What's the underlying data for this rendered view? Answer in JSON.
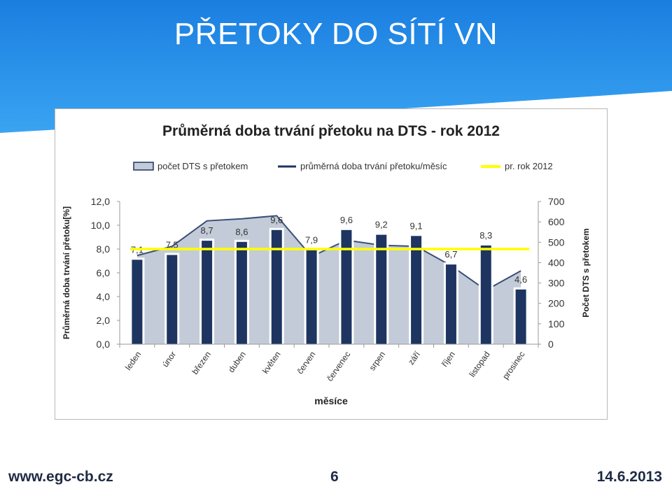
{
  "slide": {
    "title": "PŘETOKY DO SÍTÍ VN",
    "footer_url": "www.egc-cb.cz",
    "page_number": "6",
    "date": "14.6.2013"
  },
  "colors": {
    "header_blue": "#1e88e5",
    "bar_color": "#1d3560",
    "area_fill": "#c3cbd8",
    "line_color": "#1d3560",
    "avg_line": "#ffff00"
  },
  "chart_data": {
    "type": "bar",
    "title": "Průměrná doba trvání přetoku na DTS - rok 2012",
    "xlabel": "měsíce",
    "ylabel": "Průměrná doba trvání přetoku[%]",
    "y2label": "Počet DTS s přetokem",
    "categories": [
      "leden",
      "únor",
      "březen",
      "duben",
      "květen",
      "červen",
      "červenec",
      "srpen",
      "září",
      "říjen",
      "listopad",
      "prosinec"
    ],
    "series": [
      {
        "name": "počet DTS s přetokem",
        "kind": "area",
        "axis": "right",
        "values": [
          435,
          480,
          605,
          615,
          630,
          430,
          510,
          485,
          480,
          385,
          265,
          360
        ]
      },
      {
        "name": "průměrná doba trvání přetoku/měsíc",
        "kind": "bar",
        "axis": "left",
        "values": [
          7.1,
          7.5,
          8.7,
          8.6,
          9.6,
          7.9,
          9.6,
          9.2,
          9.1,
          6.7,
          8.3,
          4.6
        ],
        "labels": [
          "7,1",
          "7,5",
          "8,7",
          "8,6",
          "9,6",
          "7,9",
          "9,6",
          "9,2",
          "9,1",
          "6,7",
          "8,3",
          "4,6"
        ]
      },
      {
        "name": "pr. rok 2012",
        "kind": "hline",
        "axis": "left",
        "value": 8.0
      }
    ],
    "ylim": [
      0,
      12
    ],
    "y_ticks": [
      "0,0",
      "2,0",
      "4,0",
      "6,0",
      "8,0",
      "10,0",
      "12,0"
    ],
    "y2lim": [
      0,
      700
    ],
    "y2_ticks": [
      "0",
      "100",
      "200",
      "300",
      "400",
      "500",
      "600",
      "700"
    ],
    "legend": "top",
    "grid": false
  }
}
